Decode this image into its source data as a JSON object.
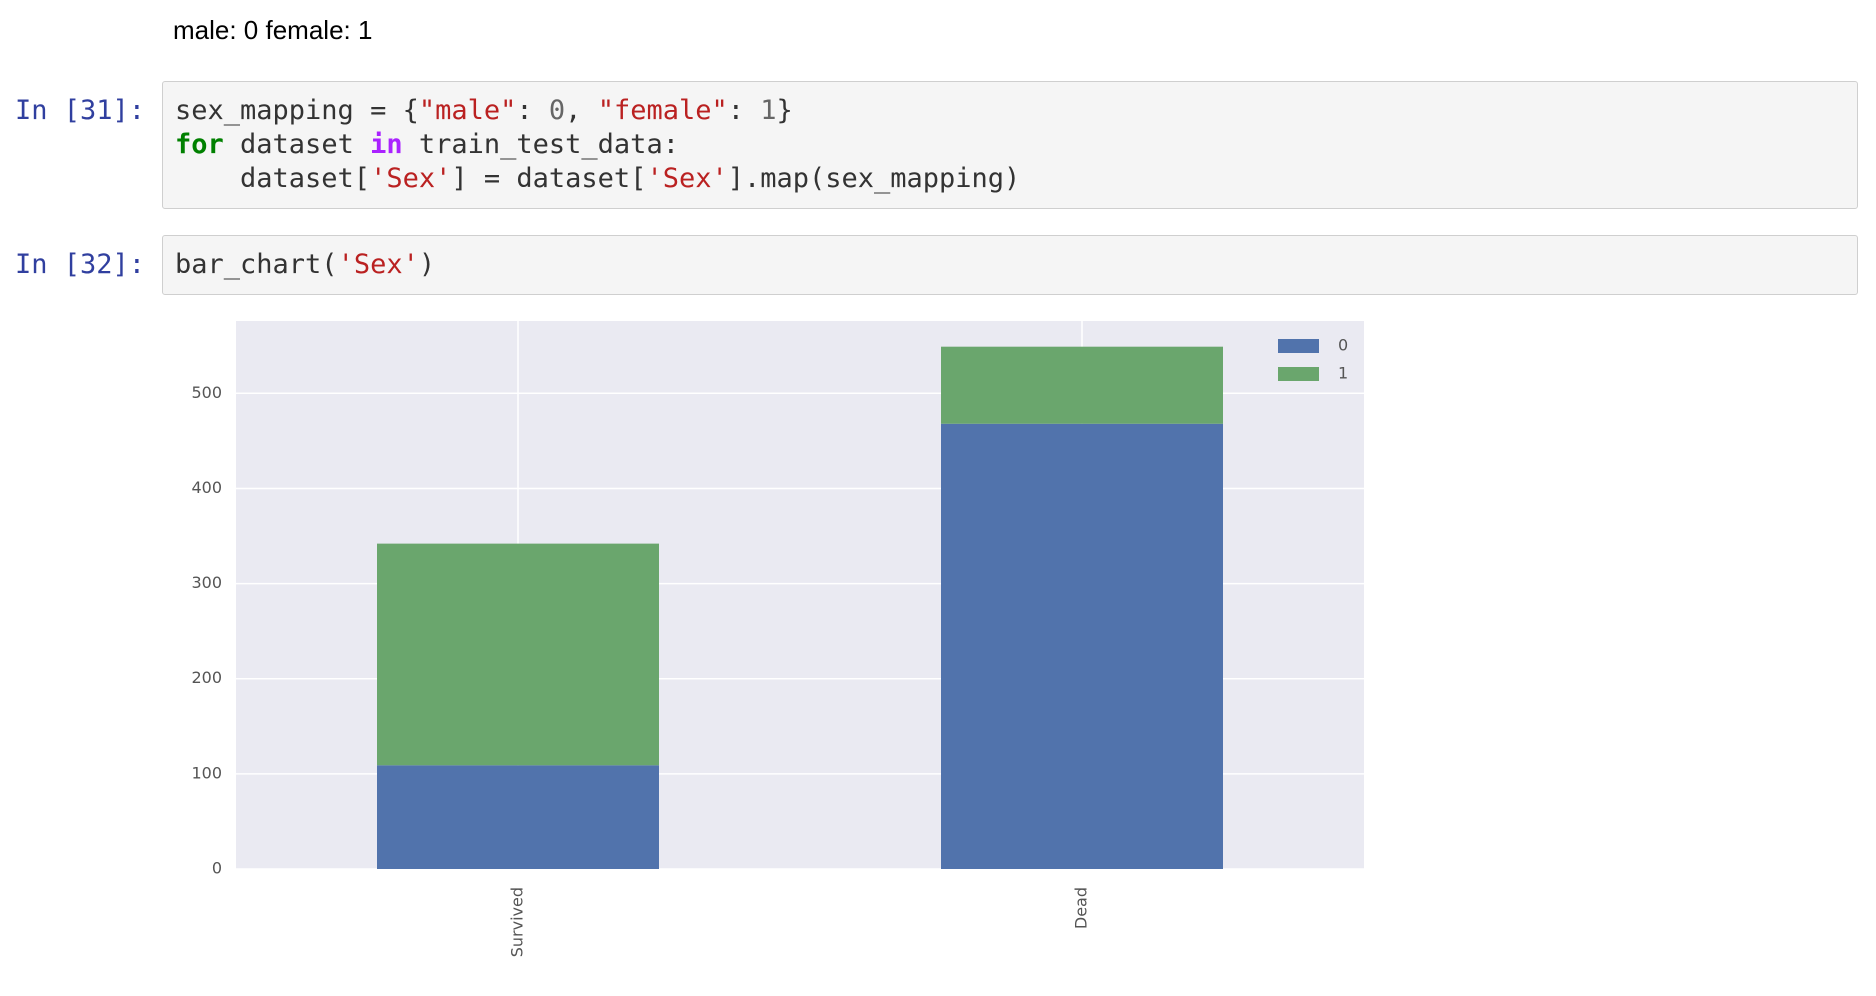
{
  "output_text": "male: 0 female: 1",
  "cells": [
    {
      "prompt": "In [31]:",
      "lines": [
        [
          {
            "text": "sex_mapping = {",
            "color": "#333333"
          },
          {
            "text": "\"male\"",
            "color": "#ba2121"
          },
          {
            "text": ": ",
            "color": "#333333"
          },
          {
            "text": "0",
            "color": "#666666"
          },
          {
            "text": ", ",
            "color": "#333333"
          },
          {
            "text": "\"female\"",
            "color": "#ba2121"
          },
          {
            "text": ": ",
            "color": "#333333"
          },
          {
            "text": "1",
            "color": "#666666"
          },
          {
            "text": "}",
            "color": "#333333"
          }
        ],
        [
          {
            "text": "for",
            "color": "#008000",
            "bold": true
          },
          {
            "text": " dataset ",
            "color": "#333333"
          },
          {
            "text": "in",
            "color": "#aa22ff",
            "bold": true
          },
          {
            "text": " train_test_data:",
            "color": "#333333"
          }
        ],
        [
          {
            "text": "    dataset[",
            "color": "#333333"
          },
          {
            "text": "'Sex'",
            "color": "#ba2121"
          },
          {
            "text": "] = dataset[",
            "color": "#333333"
          },
          {
            "text": "'Sex'",
            "color": "#ba2121"
          },
          {
            "text": "].map(sex_mapping)",
            "color": "#333333"
          }
        ]
      ]
    },
    {
      "prompt": "In [32]:",
      "lines": [
        [
          {
            "text": "bar_chart(",
            "color": "#333333"
          },
          {
            "text": "'Sex'",
            "color": "#ba2121"
          },
          {
            "text": ")",
            "color": "#333333"
          }
        ]
      ]
    }
  ],
  "chart_data": {
    "type": "bar",
    "stacked": true,
    "categories": [
      "Survived",
      "Dead"
    ],
    "series": [
      {
        "name": "0",
        "color": "#5173ac",
        "values": [
          109,
          468
        ]
      },
      {
        "name": "1",
        "color": "#6aa66d",
        "values": [
          233,
          81
        ]
      }
    ],
    "ylim": [
      0,
      576
    ],
    "yticks": [
      0,
      100,
      200,
      300,
      400,
      500
    ],
    "grid": true,
    "legend": "upper right",
    "background": "#eaeaf2"
  }
}
